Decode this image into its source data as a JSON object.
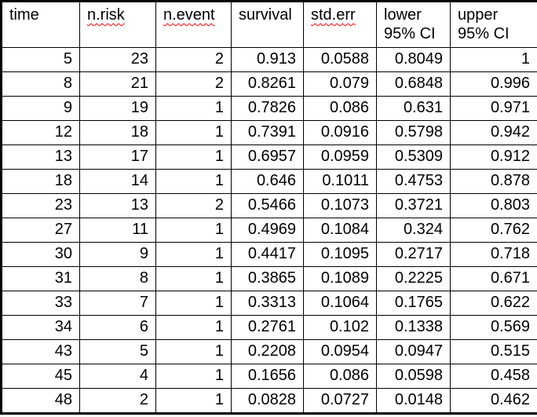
{
  "table": {
    "title": "survival-analysis-results",
    "text_color": "#000000",
    "border_color": "#000000",
    "spellcheck_underline_color": "#ff0000",
    "columns": [
      {
        "key": "time",
        "label": "time",
        "sublabel": "",
        "misspelled": false
      },
      {
        "key": "n-risk",
        "label": "n.risk",
        "sublabel": "",
        "misspelled": true
      },
      {
        "key": "n-event",
        "label": "n.event",
        "sublabel": "",
        "misspelled": true
      },
      {
        "key": "survival",
        "label": "survival",
        "sublabel": "",
        "misspelled": false
      },
      {
        "key": "std-err",
        "label": "std.err",
        "sublabel": "",
        "misspelled": true
      },
      {
        "key": "lower",
        "label": "lower",
        "sublabel": "95% CI",
        "misspelled": false
      },
      {
        "key": "upper",
        "label": "upper",
        "sublabel": "95% CI",
        "misspelled": false
      }
    ],
    "rows": [
      [
        "5",
        "23",
        "2",
        "0.913",
        "0.0588",
        "0.8049",
        "1"
      ],
      [
        "8",
        "21",
        "2",
        "0.8261",
        "0.079",
        "0.6848",
        "0.996"
      ],
      [
        "9",
        "19",
        "1",
        "0.7826",
        "0.086",
        "0.631",
        "0.971"
      ],
      [
        "12",
        "18",
        "1",
        "0.7391",
        "0.0916",
        "0.5798",
        "0.942"
      ],
      [
        "13",
        "17",
        "1",
        "0.6957",
        "0.0959",
        "0.5309",
        "0.912"
      ],
      [
        "18",
        "14",
        "1",
        "0.646",
        "0.1011",
        "0.4753",
        "0.878"
      ],
      [
        "23",
        "13",
        "2",
        "0.5466",
        "0.1073",
        "0.3721",
        "0.803"
      ],
      [
        "27",
        "11",
        "1",
        "0.4969",
        "0.1084",
        "0.324",
        "0.762"
      ],
      [
        "30",
        "9",
        "1",
        "0.4417",
        "0.1095",
        "0.2717",
        "0.718"
      ],
      [
        "31",
        "8",
        "1",
        "0.3865",
        "0.1089",
        "0.2225",
        "0.671"
      ],
      [
        "33",
        "7",
        "1",
        "0.3313",
        "0.1064",
        "0.1765",
        "0.622"
      ],
      [
        "34",
        "6",
        "1",
        "0.2761",
        "0.102",
        "0.1338",
        "0.569"
      ],
      [
        "43",
        "5",
        "1",
        "0.2208",
        "0.0954",
        "0.0947",
        "0.515"
      ],
      [
        "45",
        "4",
        "1",
        "0.1656",
        "0.086",
        "0.0598",
        "0.458"
      ],
      [
        "48",
        "2",
        "1",
        "0.0828",
        "0.0727",
        "0.0148",
        "0.462"
      ]
    ]
  }
}
